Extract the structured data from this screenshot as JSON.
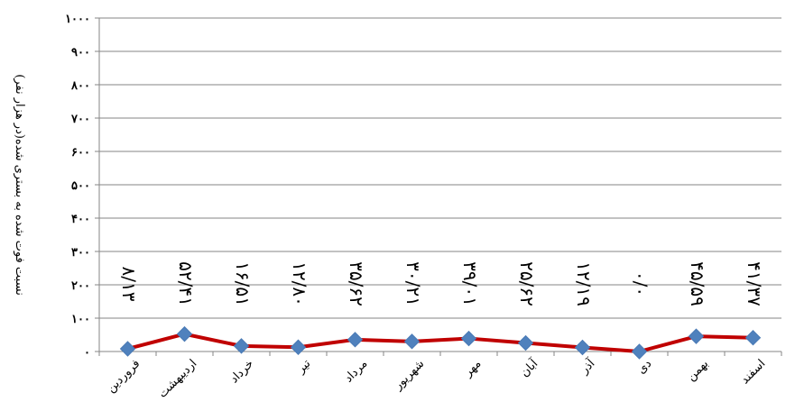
{
  "chart_data": {
    "type": "line",
    "title": "",
    "ylabel": "نسبت فوت شده به بستری شده(در هزار نفر)",
    "xlabel": "",
    "ylim": [
      0,
      1000
    ],
    "y_ticks": [
      "۰",
      "۱۰۰",
      "۲۰۰",
      "۳۰۰",
      "۴۰۰",
      "۵۰۰",
      "۶۰۰",
      "۷۰۰",
      "۸۰۰",
      "۹۰۰",
      "۱۰۰۰"
    ],
    "y_tick_values": [
      0,
      100,
      200,
      300,
      400,
      500,
      600,
      700,
      800,
      900,
      1000
    ],
    "grid": true,
    "legend": "none",
    "categories": [
      "فروردین",
      "اردیبهشت",
      "خرداد",
      "تیر",
      "مرداد",
      "شهریور",
      "مهر",
      "آبان",
      "آذر",
      "دی",
      "بهمن",
      "اسفند"
    ],
    "series": [
      {
        "values": [
          8.13,
          52.41,
          16.51,
          12.8,
          35.62,
          30.21,
          39.01,
          25.62,
          12.19,
          0,
          45.59,
          41.37
        ],
        "data_labels": [
          "۸/۱۳",
          "۵۲/۴۱",
          "۱۶/۵۱",
          "۱۲/۸۰",
          "۳۵/۶۲",
          "۳۰/۲۱",
          "۳۹/۰۱",
          "۲۵/۶۲",
          "۱۲/۱۹",
          "۰/۰",
          "۴۵/۵۹",
          "۴۱/۳۷"
        ]
      }
    ]
  },
  "colors": {
    "line": "#c00000",
    "marker": "#4f81bd",
    "grid": "#868686",
    "axis": "#868686"
  }
}
